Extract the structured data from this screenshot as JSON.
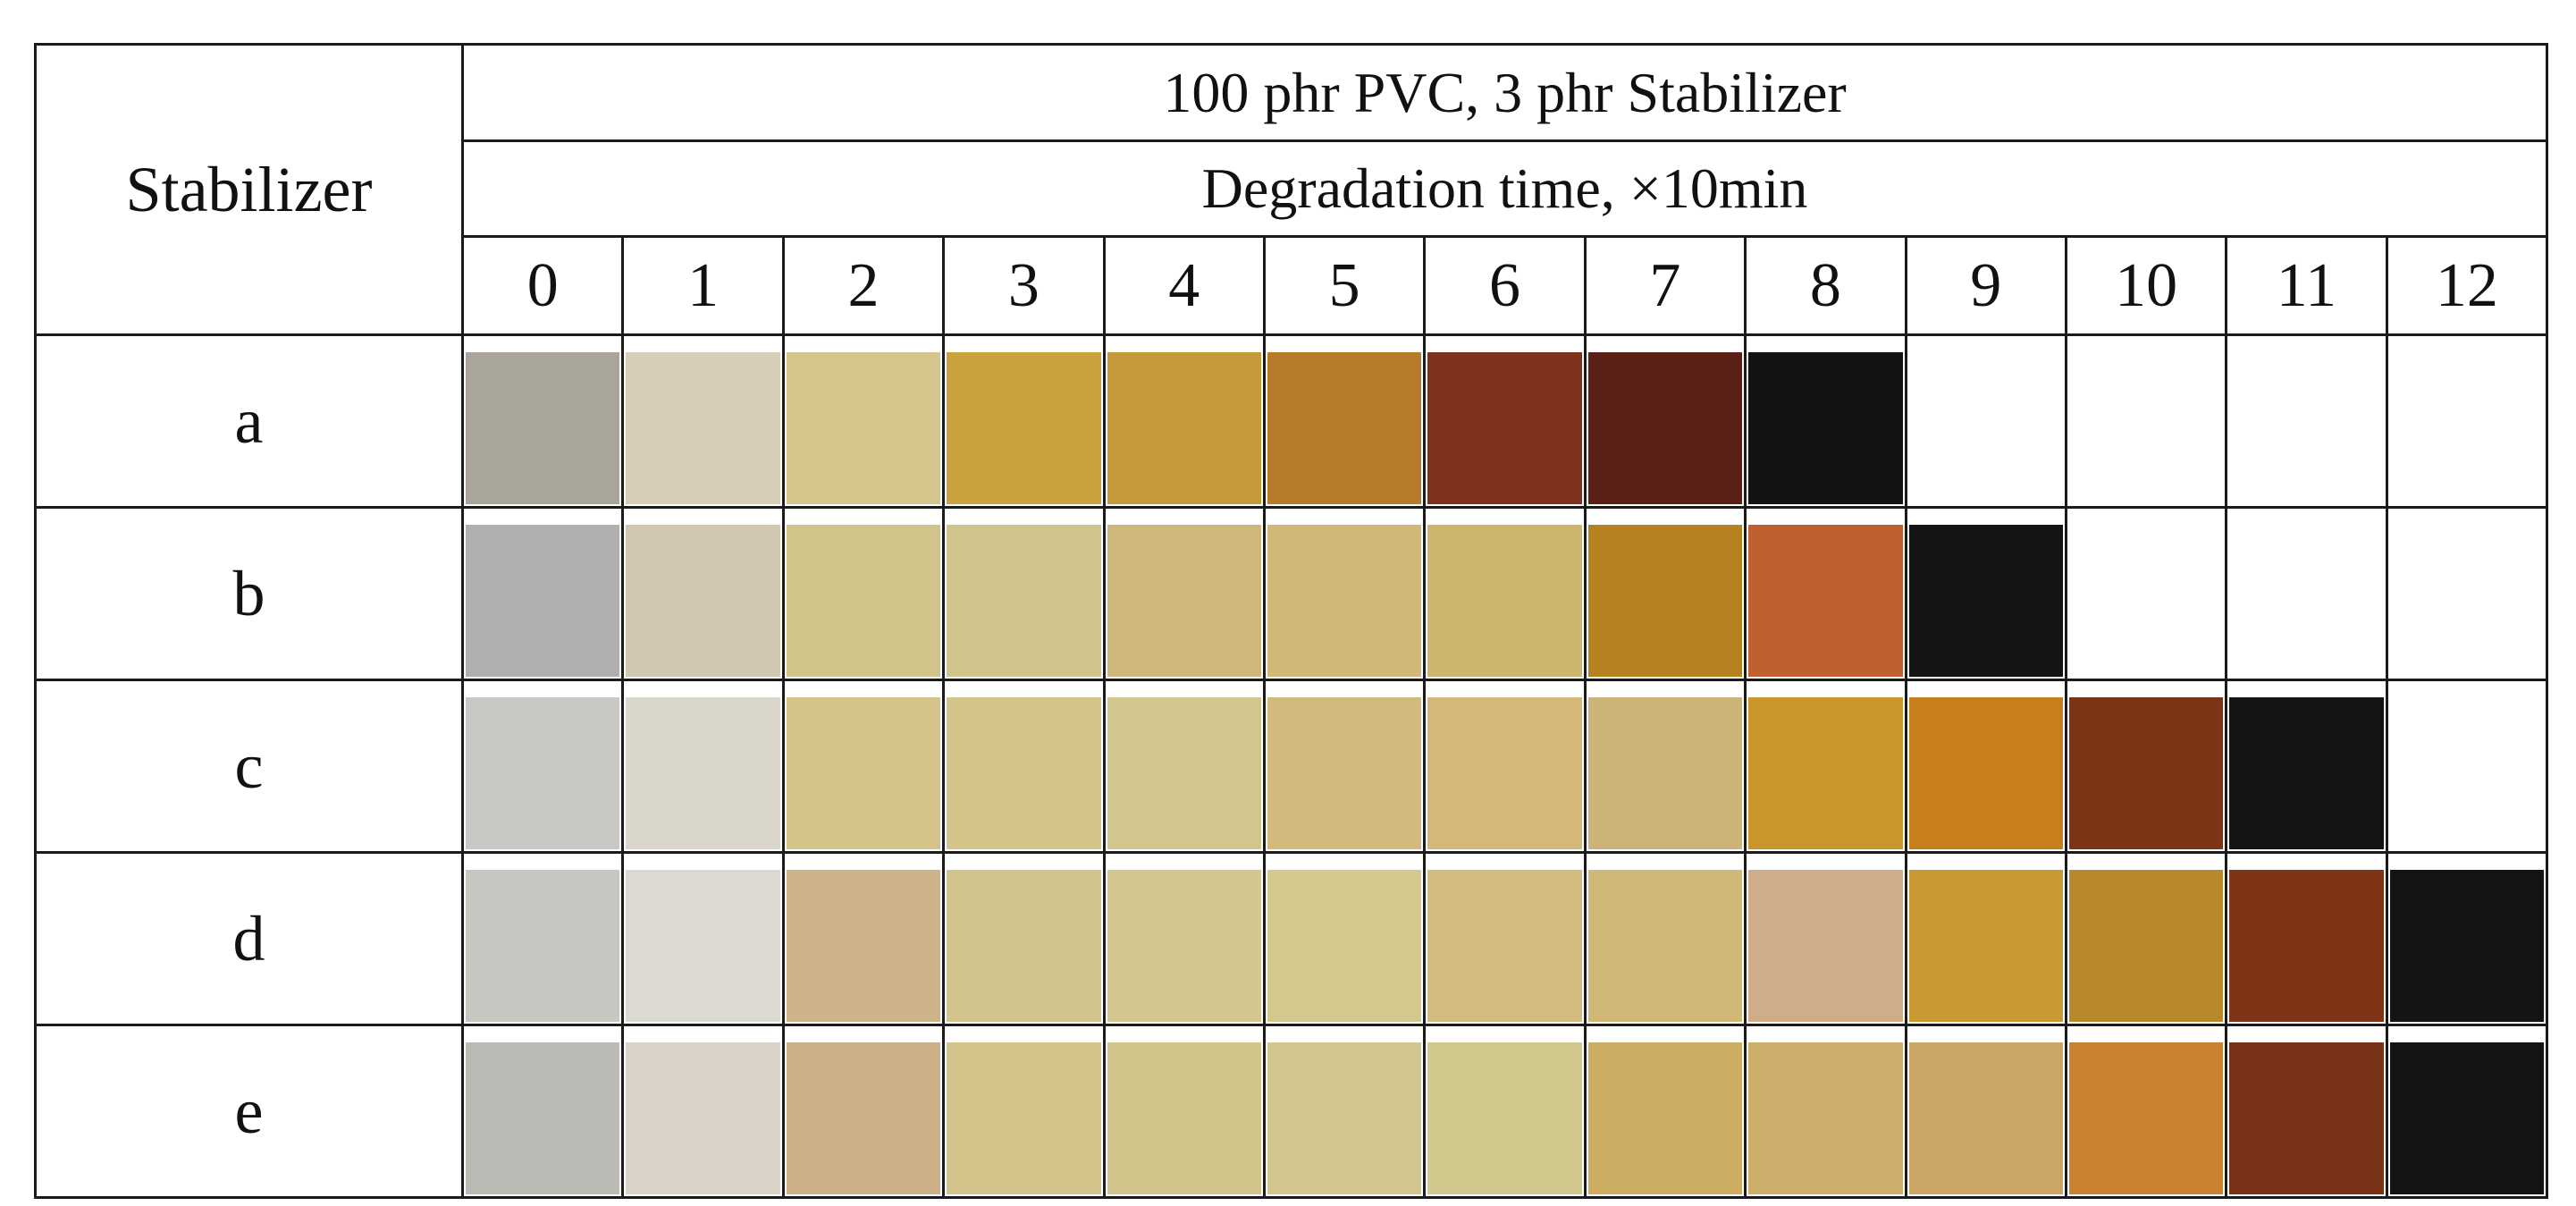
{
  "table": {
    "stabilizer_header": "Stabilizer",
    "formulation_header": "100 phr PVC, 3 phr Stabilizer",
    "time_header": "Degradation time,  ×10min",
    "time_ticks": [
      "0",
      "1",
      "2",
      "3",
      "4",
      "5",
      "6",
      "7",
      "8",
      "9",
      "10",
      "11",
      "12"
    ],
    "rows": [
      {
        "label": "a",
        "swatches": [
          "#a9a59b",
          "#d8cdb7",
          "#d3c58c",
          "#c9a23c",
          "#c49a3a",
          "#b57a2a",
          "#7e321c",
          "#5a2016",
          "#121212",
          null,
          null,
          null,
          null
        ]
      },
      {
        "label": "b",
        "swatches": [
          "#afafad",
          "#d2c8b1",
          "#d0c48a",
          "#cfc48c",
          "#cfb77c",
          "#d1b778",
          "#cdb56d",
          "#b4821f",
          "#c05f30",
          "#141414",
          null,
          null,
          null
        ]
      },
      {
        "label": "c",
        "swatches": [
          "#c9c8c5",
          "#dad6cc",
          "#d4c48a",
          "#d3c48a",
          "#d1c78e",
          "#d2b97c",
          "#d3b87a",
          "#cdb27a",
          "#c9962e",
          "#c77f1e",
          "#7c3417",
          "#141414",
          null
        ]
      },
      {
        "label": "d",
        "swatches": [
          "#c8c6c1",
          "#dcd9d2",
          "#cdb488",
          "#d1c48c",
          "#d3c78f",
          "#d3c88e",
          "#d3bb7d",
          "#d1b876",
          "#cfad88",
          "#c99a33",
          "#b7892b",
          "#7f3418",
          "#141414"
        ]
      },
      {
        "label": "e",
        "swatches": [
          "#bcbab4",
          "#dad4c8",
          "#cdb088",
          "#d2c48a",
          "#d2c58c",
          "#d3c68e",
          "#d1c88e",
          "#cdad61",
          "#cdad6a",
          "#cba565",
          "#c9802f",
          "#7a3216",
          "#141414"
        ]
      }
    ]
  }
}
